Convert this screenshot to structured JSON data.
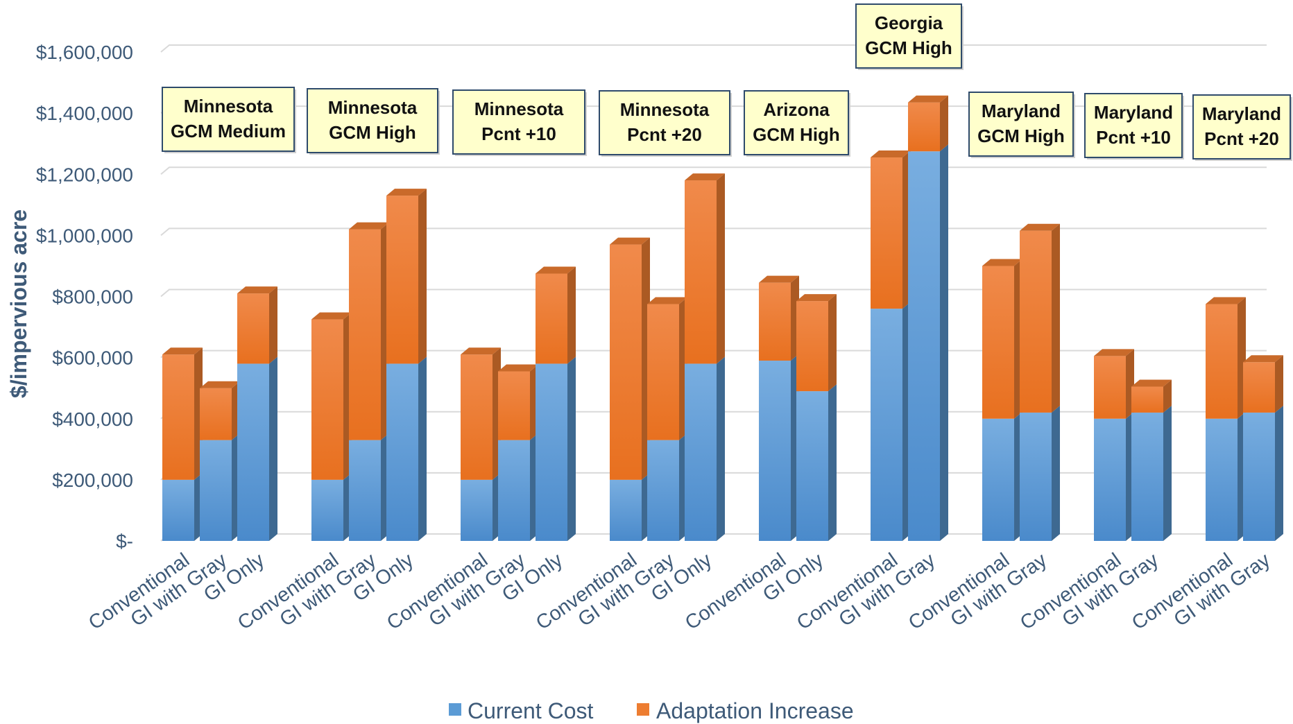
{
  "chart_data": {
    "type": "bar",
    "stacked": true,
    "three_d": true,
    "title": "",
    "xlabel": "",
    "ylabel": "$/impervious acre",
    "ylim": [
      0,
      1600000
    ],
    "yticks": [
      0,
      200000,
      400000,
      600000,
      800000,
      1000000,
      1200000,
      1400000,
      1600000
    ],
    "ytick_labels": [
      "$-",
      "$200,000",
      "$400,000",
      "$600,000",
      "$800,000",
      "$1,000,000",
      "$1,200,000",
      "$1,400,000",
      "$1,600,000"
    ],
    "grid": true,
    "legend_position": "bottom",
    "series_names": [
      "Current Cost",
      "Adaptation Increase"
    ],
    "colors": {
      "current": "#5b9bd5",
      "adaptation": "#ed7d31",
      "box_fill": "#ffffcc",
      "box_border": "#2e4a6b",
      "grid": "#d9d9d9",
      "text": "#3e5a78"
    },
    "groups": [
      {
        "label_line1": "Minnesota",
        "label_line2": "GCM Medium",
        "bars": [
          {
            "category": "Conventional",
            "current": 200000,
            "increase": 410000
          },
          {
            "category": "GI with Gray",
            "current": 330000,
            "increase": 170000
          },
          {
            "category": "GI Only",
            "current": 580000,
            "increase": 230000
          }
        ]
      },
      {
        "label_line1": "Minnesota",
        "label_line2": "GCM High",
        "bars": [
          {
            "category": "Conventional",
            "current": 200000,
            "increase": 525000
          },
          {
            "category": "GI with Gray",
            "current": 330000,
            "increase": 690000
          },
          {
            "category": "GI Only",
            "current": 580000,
            "increase": 550000
          }
        ]
      },
      {
        "label_line1": "Minnesota",
        "label_line2": "Pcnt +10",
        "bars": [
          {
            "category": "Conventional",
            "current": 200000,
            "increase": 410000
          },
          {
            "category": "GI with Gray",
            "current": 330000,
            "increase": 225000
          },
          {
            "category": "GI Only",
            "current": 580000,
            "increase": 295000
          }
        ]
      },
      {
        "label_line1": "Minnesota",
        "label_line2": "Pcnt +20",
        "bars": [
          {
            "category": "Conventional",
            "current": 200000,
            "increase": 770000
          },
          {
            "category": "GI with Gray",
            "current": 330000,
            "increase": 445000
          },
          {
            "category": "GI Only",
            "current": 580000,
            "increase": 600000
          }
        ]
      },
      {
        "label_line1": "Arizona",
        "label_line2": "GCM High",
        "bars": [
          {
            "category": "Conventional",
            "current": 590000,
            "increase": 255000
          },
          {
            "category": "GI Only",
            "current": 490000,
            "increase": 295000
          }
        ]
      },
      {
        "label_line1": "Georgia",
        "label_line2": "GCM High",
        "bars": [
          {
            "category": "Conventional",
            "current": 760000,
            "increase": 495000
          },
          {
            "category": "GI with Gray",
            "current": 1275000,
            "increase": 160000
          }
        ]
      },
      {
        "label_line1": "Maryland",
        "label_line2": "GCM High",
        "bars": [
          {
            "category": "Conventional",
            "current": 400000,
            "increase": 500000
          },
          {
            "category": "GI with Gray",
            "current": 420000,
            "increase": 595000
          }
        ]
      },
      {
        "label_line1": "Maryland",
        "label_line2": "Pcnt +10",
        "bars": [
          {
            "category": "Conventional",
            "current": 400000,
            "increase": 205000
          },
          {
            "category": "GI with Gray",
            "current": 420000,
            "increase": 85000
          }
        ]
      },
      {
        "label_line1": "Maryland",
        "label_line2": "Pcnt +20",
        "bars": [
          {
            "category": "Conventional",
            "current": 400000,
            "increase": 375000
          },
          {
            "category": "GI with Gray",
            "current": 420000,
            "increase": 165000
          }
        ]
      }
    ]
  }
}
